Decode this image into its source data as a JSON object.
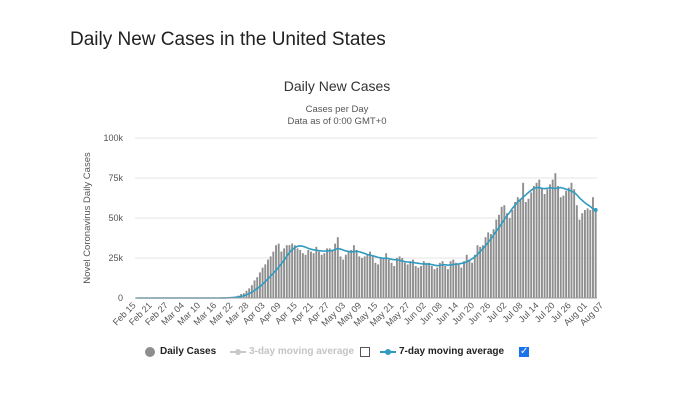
{
  "page": {
    "title": "Daily New Cases in the United States"
  },
  "legend": {
    "daily": "Daily Cases",
    "ma3": "3-day moving average",
    "ma7": "7-day moving average",
    "ma3_checked": false,
    "ma7_checked": true
  },
  "colors": {
    "bars": "#8e8e8e",
    "ma7": "#2f9bc1",
    "ma3": "#c9c9c9",
    "grid": "#e6e6e6",
    "checkbox": "#1a73e8"
  },
  "chart_data": {
    "type": "bar",
    "title": "Daily New Cases",
    "subtitle": "Cases per Day",
    "subtitle2": "Data as of 0:00 GMT+0",
    "ylabel": "Novel Coronavirus Daily Cases",
    "ylim": [
      0,
      100000
    ],
    "yticks": [
      0,
      25000,
      50000,
      75000,
      100000
    ],
    "ytick_labels": [
      "0",
      "25k",
      "50k",
      "75k",
      "100k"
    ],
    "xtick_labels": [
      "Feb 15",
      "Feb 21",
      "Feb 27",
      "Mar 04",
      "Mar 10",
      "Mar 16",
      "Mar 22",
      "Mar 28",
      "Apr 03",
      "Apr 09",
      "Apr 15",
      "Apr 21",
      "Apr 27",
      "May 03",
      "May 09",
      "May 15",
      "May 21",
      "May 27",
      "Jun 02",
      "Jun 08",
      "Jun 14",
      "Jun 20",
      "Jun 26",
      "Jul 02",
      "Jul 08",
      "Jul 14",
      "Jul 20",
      "Jul 26",
      "Aug 01",
      "Aug 07"
    ],
    "x_start": "Feb 15",
    "x_end": "Aug 09",
    "series": [
      {
        "name": "Daily Cases",
        "values": [
          0,
          0,
          0,
          0,
          0,
          0,
          0,
          0,
          0,
          0,
          0,
          0,
          0,
          0,
          0,
          0,
          0,
          0,
          0,
          0,
          0,
          0,
          0,
          0,
          0,
          0,
          0,
          0,
          0,
          0,
          0,
          0,
          100,
          200,
          300,
          500,
          700,
          1000,
          1500,
          2500,
          3000,
          4500,
          6000,
          8000,
          11000,
          13000,
          16000,
          19000,
          21000,
          24000,
          26000,
          29000,
          33000,
          34000,
          29000,
          31000,
          33000,
          33000,
          34000,
          33000,
          31000,
          30000,
          28000,
          27000,
          30000,
          29000,
          28000,
          32000,
          29000,
          27000,
          28000,
          31000,
          31000,
          30000,
          34000,
          38000,
          26000,
          24000,
          27000,
          29000,
          30000,
          33000,
          30000,
          26000,
          25000,
          26000,
          27000,
          29000,
          26000,
          22000,
          21000,
          25000,
          25000,
          28000,
          24000,
          22000,
          20000,
          25000,
          26000,
          25000,
          22000,
          21000,
          23000,
          24000,
          20000,
          19000,
          20000,
          23000,
          22000,
          22000,
          20000,
          18000,
          19000,
          22000,
          23000,
          20000,
          18000,
          23000,
          24000,
          22000,
          21000,
          19000,
          23000,
          27000,
          24000,
          22000,
          27000,
          33000,
          32000,
          33000,
          38000,
          41000,
          40000,
          43000,
          49000,
          52000,
          57000,
          58000,
          53000,
          50000,
          55000,
          60000,
          63000,
          62000,
          72000,
          60000,
          62000,
          66000,
          70000,
          72000,
          74000,
          69000,
          65000,
          68000,
          71000,
          74000,
          78000,
          70000,
          63000,
          64000,
          67000,
          69000,
          72000,
          68000,
          58000,
          49000,
          53000,
          55000,
          56000,
          55000,
          63000,
          54000
        ]
      },
      {
        "name": "7-day moving average",
        "values": [
          0,
          0,
          0,
          0,
          0,
          0,
          0,
          0,
          0,
          0,
          0,
          0,
          0,
          0,
          0,
          0,
          0,
          0,
          0,
          0,
          0,
          0,
          0,
          0,
          0,
          0,
          0,
          0,
          0,
          0,
          0,
          0,
          30,
          60,
          100,
          180,
          300,
          450,
          650,
          1000,
          1400,
          2000,
          2700,
          3600,
          4700,
          5900,
          7200,
          8600,
          10200,
          12000,
          13800,
          15500,
          17300,
          19300,
          21500,
          23600,
          26200,
          28400,
          30200,
          31500,
          32300,
          32600,
          32300,
          31800,
          31000,
          30500,
          30100,
          29900,
          29600,
          29400,
          29300,
          29400,
          29500,
          29700,
          30200,
          31000,
          30600,
          30000,
          29400,
          29100,
          28800,
          29000,
          29200,
          28900,
          28400,
          27800,
          27200,
          26800,
          26400,
          25900,
          25400,
          25100,
          24800,
          24900,
          24600,
          24200,
          23900,
          23900,
          23600,
          23100,
          22700,
          22500,
          22300,
          22200,
          21900,
          21700,
          21400,
          21300,
          21200,
          21200,
          20900,
          20500,
          20200,
          20400,
          20700,
          20800,
          20500,
          20700,
          21000,
          21100,
          21300,
          21600,
          22000,
          22600,
          23500,
          24500,
          25700,
          27200,
          29000,
          30800,
          32700,
          34800,
          37000,
          39300,
          41800,
          44000,
          46500,
          49000,
          51500,
          53500,
          56000,
          58000,
          60000,
          61500,
          63000,
          64500,
          66000,
          67300,
          68500,
          69000,
          69000,
          68500,
          68300,
          68600,
          68900,
          68700,
          68400,
          68800,
          69000,
          68600,
          68000,
          67500,
          66800,
          66000,
          64500,
          62500,
          61000,
          59500,
          58300,
          57200,
          55800,
          55000
        ]
      }
    ]
  }
}
